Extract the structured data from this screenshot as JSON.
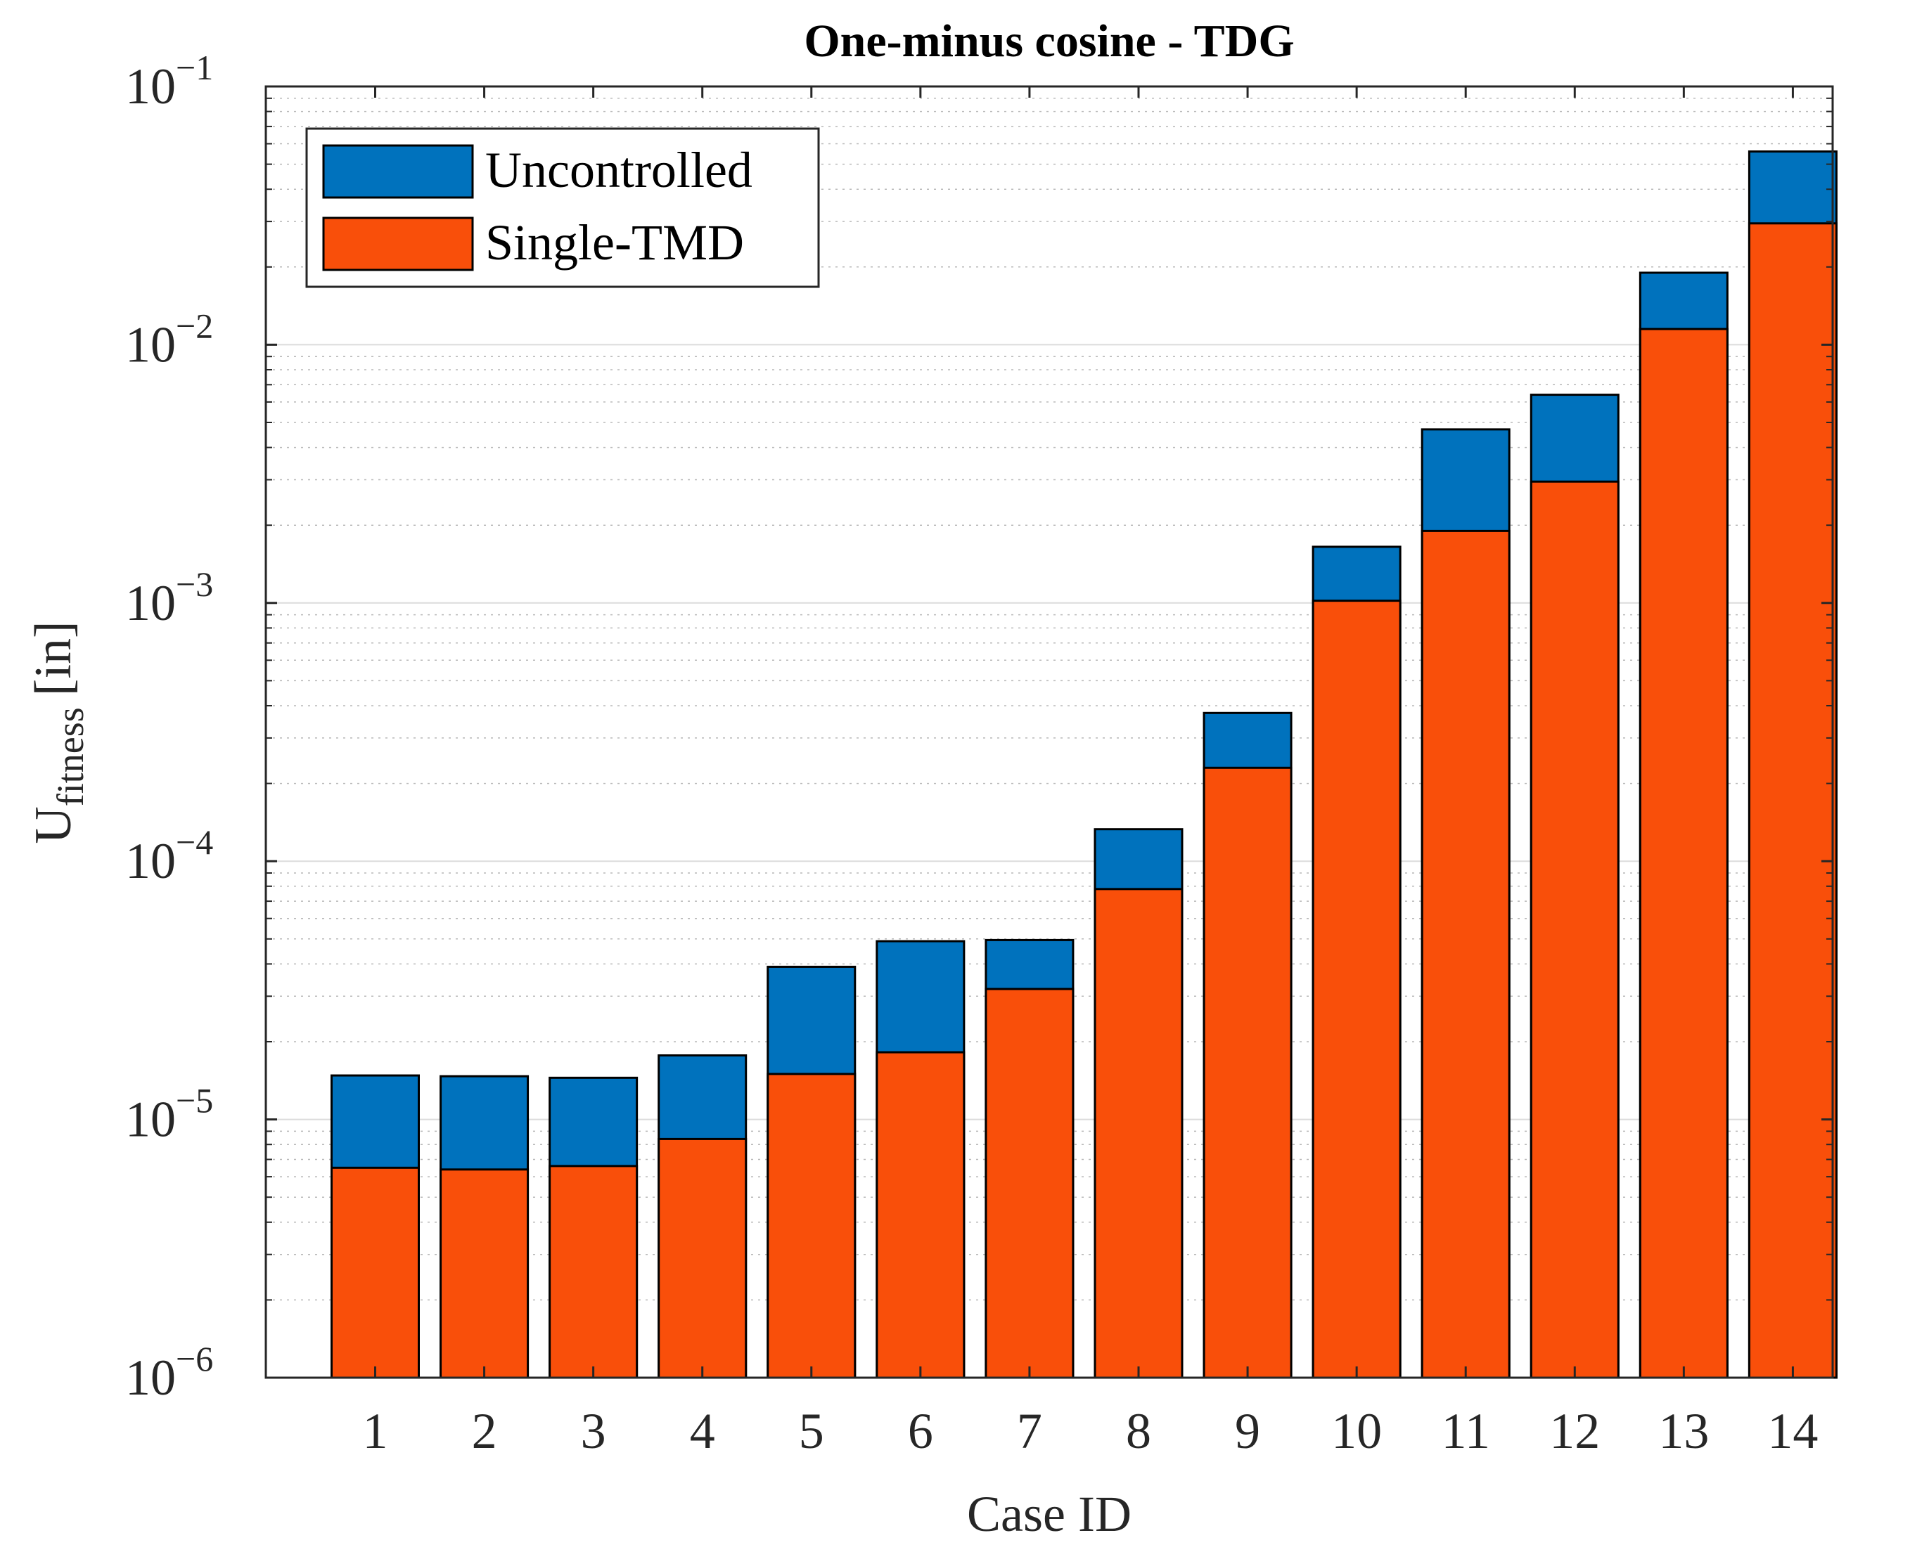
{
  "chart_data": {
    "type": "bar",
    "title": "One-minus cosine - TDG",
    "xlabel": "Case ID",
    "ylabel_main": "U",
    "ylabel_sub": "fitness",
    "ylabel_unit": "[in]",
    "yscale": "log",
    "ylim": [
      1e-06,
      0.1
    ],
    "ytick_exponents": [
      "-6",
      "-5",
      "-4",
      "-3",
      "-2",
      "-1"
    ],
    "ytick_base": "10",
    "grid": true,
    "minor_grid": true,
    "legend_position": "top-left",
    "categories": [
      "1",
      "2",
      "3",
      "4",
      "5",
      "6",
      "7",
      "8",
      "9",
      "10",
      "11",
      "12",
      "13",
      "14"
    ],
    "series": [
      {
        "name": "Uncontrolled",
        "color": "#0072BD",
        "values": [
          1.48e-05,
          1.47e-05,
          1.45e-05,
          1.77e-05,
          3.9e-05,
          4.9e-05,
          4.95e-05,
          0.000133,
          0.000375,
          0.00165,
          0.0047,
          0.0064,
          0.019,
          0.056
        ]
      },
      {
        "name": "Single-TMD",
        "color": "#F94F0A",
        "values": [
          6.5e-06,
          6.4e-06,
          6.6e-06,
          8.4e-06,
          1.5e-05,
          1.82e-05,
          3.2e-05,
          7.8e-05,
          0.00023,
          0.00102,
          0.0019,
          0.00295,
          0.0115,
          0.0295
        ]
      }
    ]
  }
}
